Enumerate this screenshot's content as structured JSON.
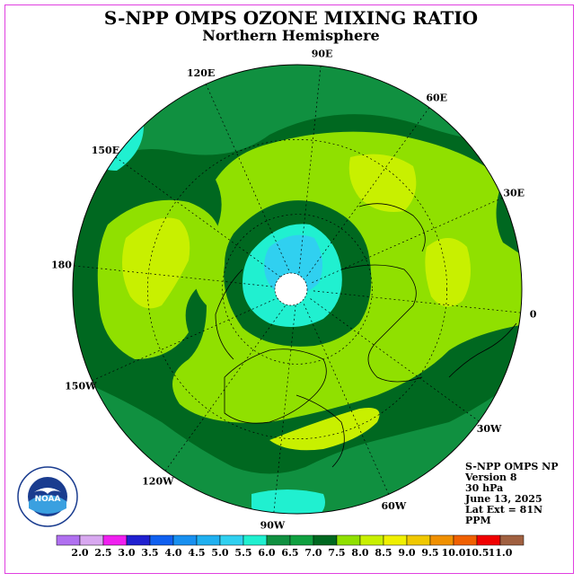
{
  "title": "S-NPP OMPS OZONE MIXING RATIO",
  "subtitle": "Northern Hemisphere",
  "longitude_labels": [
    {
      "text": "90E",
      "lon": 90
    },
    {
      "text": "60E",
      "lon": 60
    },
    {
      "text": "30E",
      "lon": 30
    },
    {
      "text": "0",
      "lon": 0
    },
    {
      "text": "30W",
      "lon": -30
    },
    {
      "text": "60W",
      "lon": -60
    },
    {
      "text": "90W",
      "lon": -90
    },
    {
      "text": "120W",
      "lon": -120
    },
    {
      "text": "150W",
      "lon": -150
    },
    {
      "text": "180",
      "lon": 180
    },
    {
      "text": "150E",
      "lon": 150
    },
    {
      "text": "120E",
      "lon": 120
    }
  ],
  "latitude_circles": [
    30,
    60
  ],
  "info": {
    "instrument": "S-NPP OMPS NP",
    "version": "Version 8",
    "level": "30 hPa",
    "date": "June 13, 2025",
    "lat_ext": "Lat Ext = 81N",
    "units": "PPM"
  },
  "logo": {
    "text": "NOAA",
    "ring_text": "NATIONAL OCEANIC AND ATMOSPHERIC ADMINISTRATION · U.S. DEPARTMENT OF COMMERCE"
  },
  "colorbar": {
    "ticks": [
      "2.0",
      "2.5",
      "3.0",
      "3.5",
      "4.0",
      "4.5",
      "5.0",
      "5.5",
      "6.0",
      "6.5",
      "7.0",
      "7.5",
      "8.0",
      "8.5",
      "9.0",
      "9.5",
      "10.0",
      "10.5",
      "11.0"
    ],
    "colors": [
      "#b070f0",
      "#d8a8f0",
      "#f020f0",
      "#2020d0",
      "#1060f0",
      "#1890f0",
      "#20b0f0",
      "#30d0f0",
      "#20f0d0",
      "#109040",
      "#10a040",
      "#006820",
      "#90e000",
      "#c8f000",
      "#f0f000",
      "#f0c800",
      "#f09000",
      "#f06000",
      "#f00000",
      "#a06040"
    ]
  },
  "colors": {
    "dark_green": "#006820",
    "medium_green": "#109040",
    "lime": "#90e000",
    "yellow_green": "#c8f000",
    "cyan": "#20f0d0",
    "light_blue": "#30d0f0",
    "blue": "#20b0f0"
  }
}
